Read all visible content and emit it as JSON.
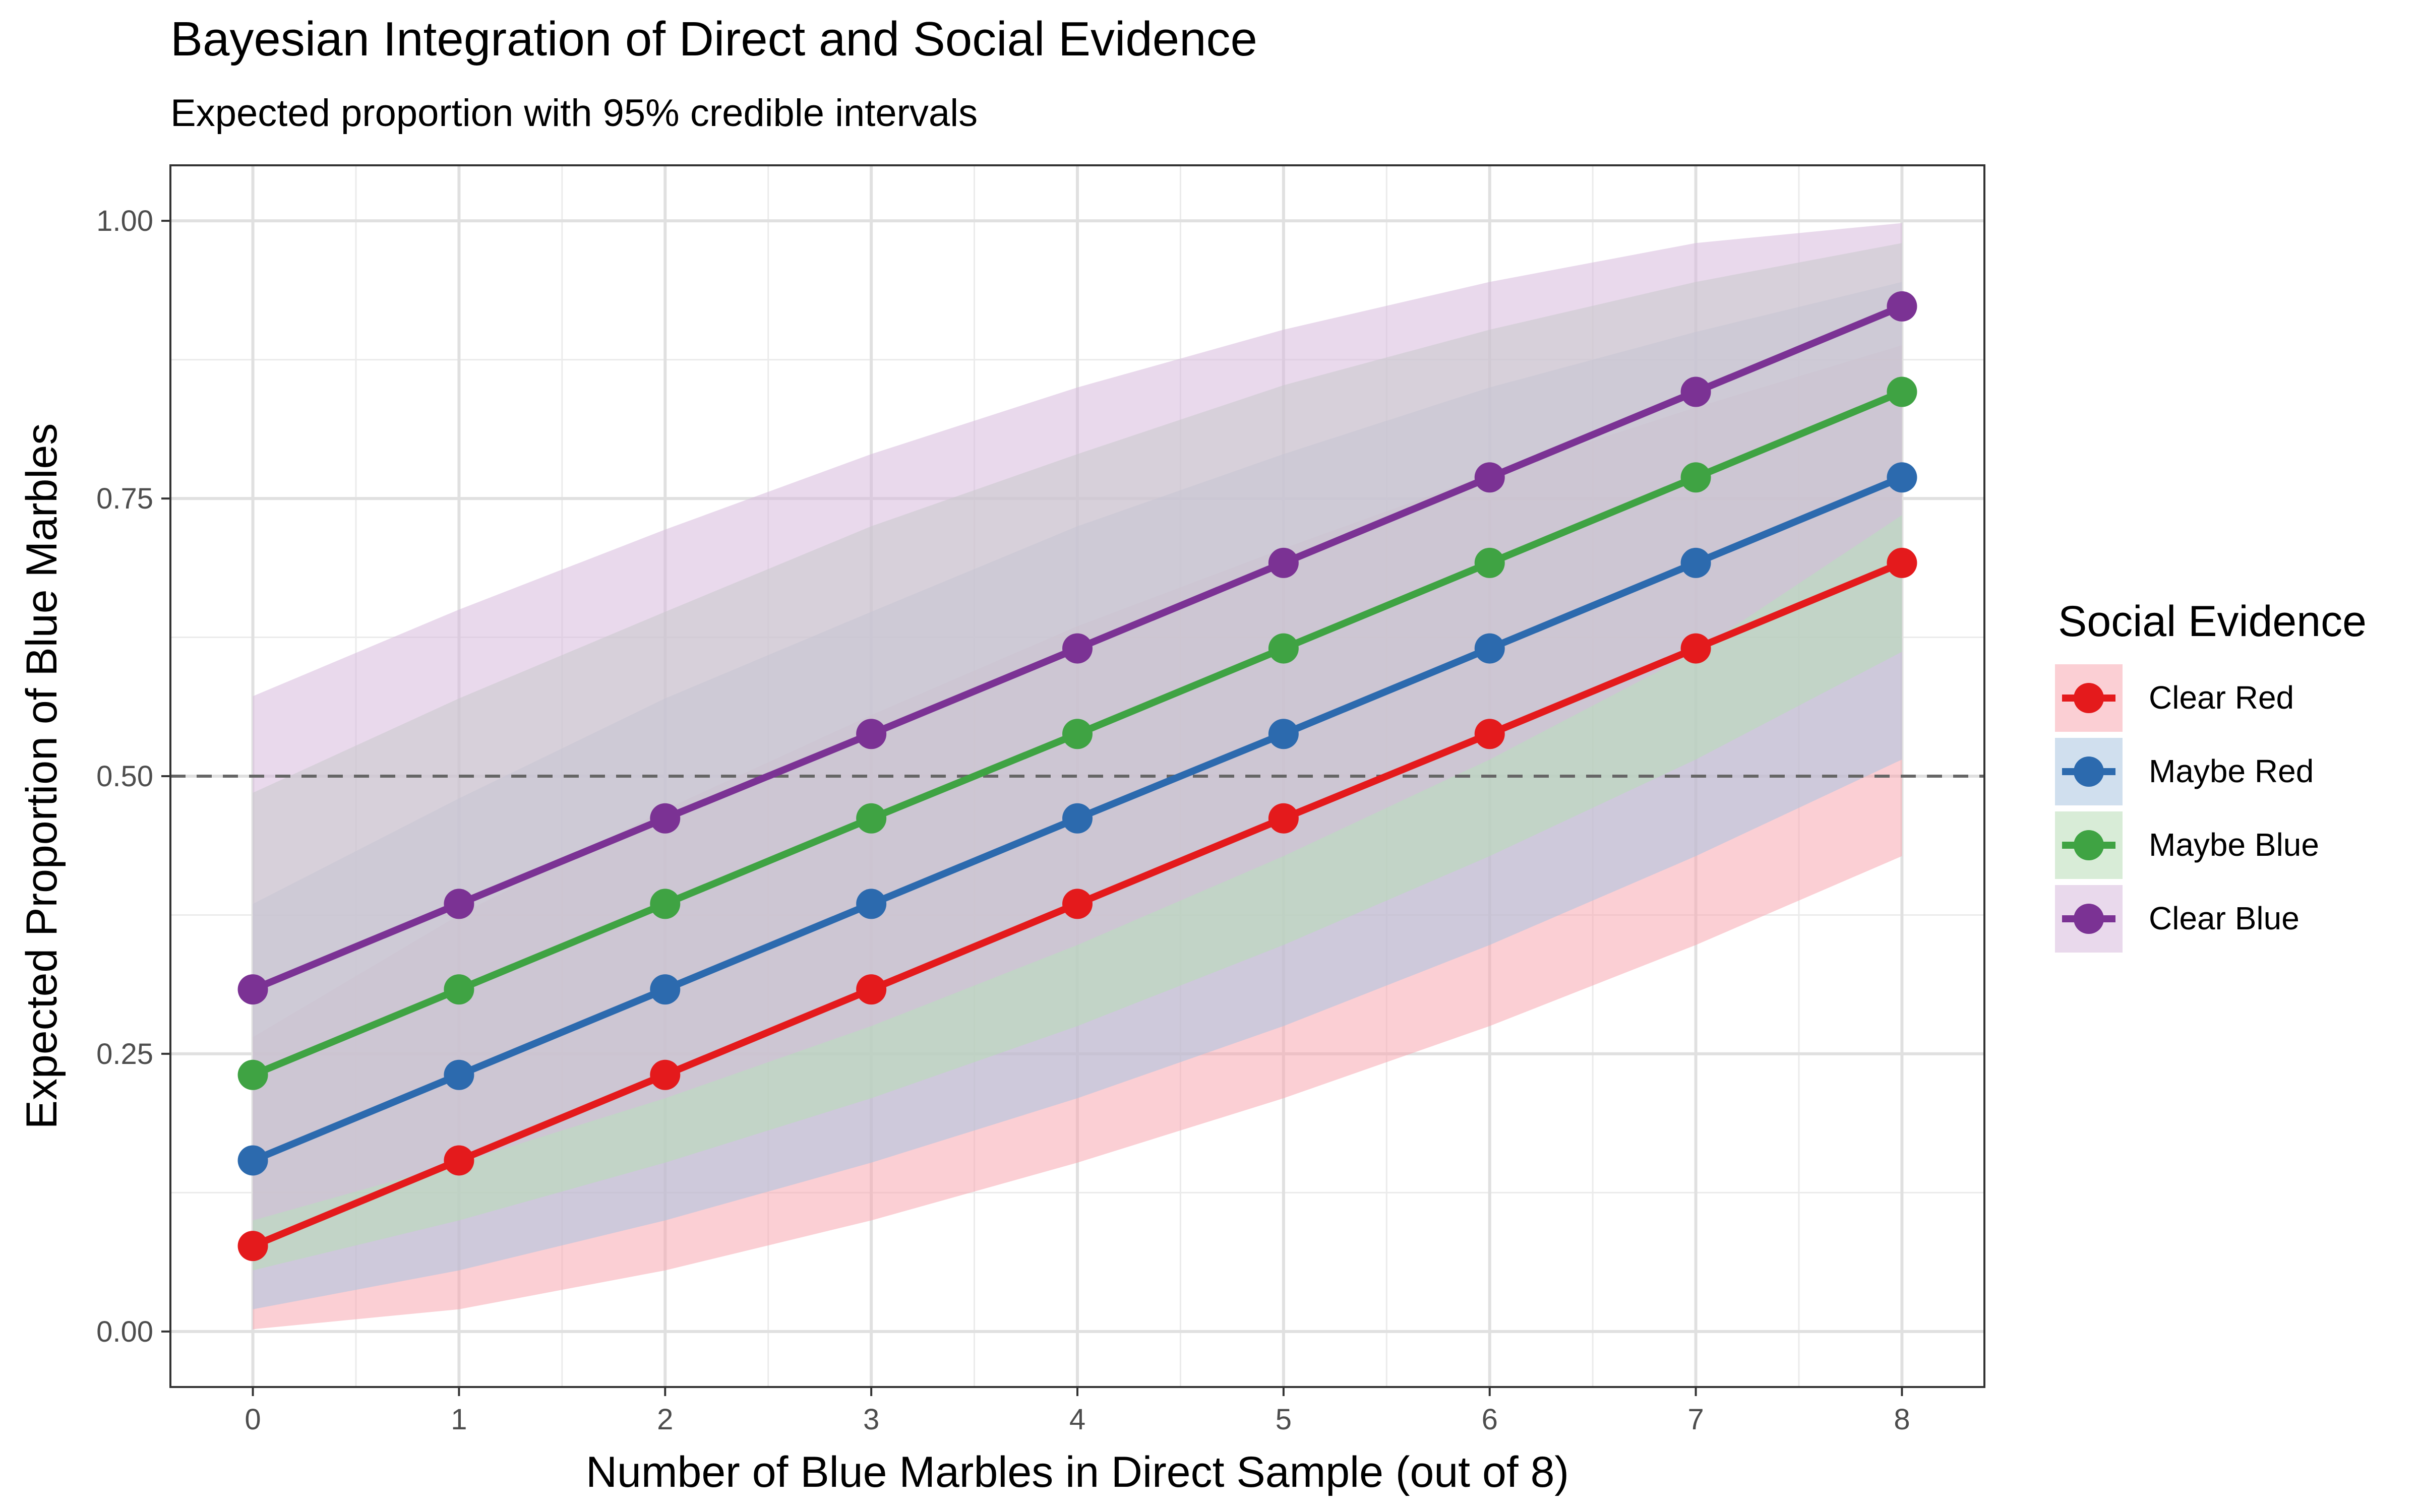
{
  "chart_data": {
    "type": "line",
    "title": "Bayesian Integration of Direct and Social Evidence",
    "subtitle": "Expected proportion with 95% credible intervals",
    "xlabel": "Number of Blue Marbles in Direct Sample (out of 8)",
    "ylabel": "Expected Proportion of Blue Marbles",
    "x": [
      0,
      1,
      2,
      3,
      4,
      5,
      6,
      7,
      8
    ],
    "xlim": [
      -0.4,
      8.4
    ],
    "ylim": [
      -0.05,
      1.05
    ],
    "x_ticks": [
      "0",
      "1",
      "2",
      "3",
      "4",
      "5",
      "6",
      "7",
      "8"
    ],
    "y_ticks": [
      {
        "value": 0.0,
        "label": "0.00"
      },
      {
        "value": 0.25,
        "label": "0.25"
      },
      {
        "value": 0.5,
        "label": "0.50"
      },
      {
        "value": 0.75,
        "label": "0.75"
      },
      {
        "value": 1.0,
        "label": "1.00"
      }
    ],
    "reference_line": {
      "y": 0.5,
      "style": "dashed",
      "color": "#666666"
    },
    "grid": true,
    "legend": {
      "title": "Social Evidence",
      "position": "right"
    },
    "series": [
      {
        "name": "Clear Red",
        "color": "#E41A1C",
        "band_color": "#F7A8B0",
        "values": [
          0.077,
          0.154,
          0.231,
          0.308,
          0.385,
          0.462,
          0.538,
          0.615,
          0.692
        ],
        "lower": [
          0.002,
          0.02,
          0.055,
          0.1,
          0.152,
          0.21,
          0.275,
          0.348,
          0.428
        ],
        "upper": [
          0.265,
          0.375,
          0.47,
          0.555,
          0.635,
          0.705,
          0.772,
          0.832,
          0.888
        ]
      },
      {
        "name": "Maybe Red",
        "color": "#2C6AAE",
        "band_color": "#A9C4E0",
        "values": [
          0.154,
          0.231,
          0.308,
          0.385,
          0.462,
          0.538,
          0.615,
          0.692,
          0.769
        ],
        "lower": [
          0.02,
          0.055,
          0.1,
          0.152,
          0.21,
          0.275,
          0.348,
          0.428,
          0.515
        ],
        "upper": [
          0.385,
          0.48,
          0.57,
          0.648,
          0.725,
          0.79,
          0.85,
          0.9,
          0.945
        ]
      },
      {
        "name": "Maybe Blue",
        "color": "#3FA343",
        "band_color": "#B8DDB6",
        "values": [
          0.231,
          0.308,
          0.385,
          0.462,
          0.538,
          0.615,
          0.692,
          0.769,
          0.846
        ],
        "lower": [
          0.055,
          0.1,
          0.152,
          0.21,
          0.275,
          0.348,
          0.428,
          0.515,
          0.612
        ],
        "upper": [
          0.485,
          0.57,
          0.648,
          0.725,
          0.79,
          0.852,
          0.902,
          0.945,
          0.98
        ]
      },
      {
        "name": "Clear Blue",
        "color": "#7B3294",
        "band_color": "#D7B9DD",
        "values": [
          0.308,
          0.385,
          0.462,
          0.538,
          0.615,
          0.692,
          0.769,
          0.846,
          0.923
        ],
        "lower": [
          0.1,
          0.152,
          0.21,
          0.275,
          0.348,
          0.428,
          0.515,
          0.612,
          0.735
        ],
        "upper": [
          0.572,
          0.65,
          0.722,
          0.79,
          0.85,
          0.902,
          0.945,
          0.98,
          0.998
        ]
      }
    ]
  }
}
